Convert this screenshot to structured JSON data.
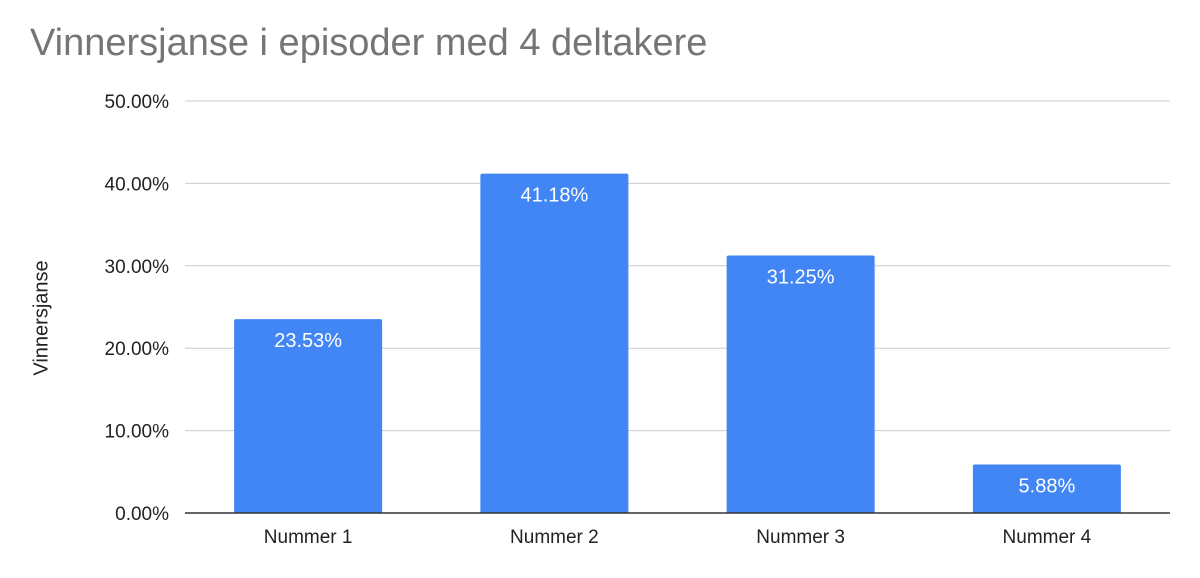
{
  "chart_data": {
    "type": "bar",
    "title": "Vinnersjanse i episoder med 4 deltakere",
    "xlabel": "",
    "ylabel": "Vinnersjanse",
    "categories": [
      "Nummer 1",
      "Nummer 2",
      "Nummer 3",
      "Nummer 4"
    ],
    "values": [
      23.53,
      41.18,
      31.25,
      5.88
    ],
    "value_labels": [
      "23.53%",
      "41.18%",
      "31.25%",
      "5.88%"
    ],
    "y_ticks": [
      0,
      10,
      20,
      30,
      40,
      50
    ],
    "y_tick_labels": [
      "0.00%",
      "10.00%",
      "20.00%",
      "30.00%",
      "40.00%",
      "50.00%"
    ],
    "ylim": [
      0,
      50
    ],
    "grid": true,
    "legend": "none",
    "bar_color": "#4285f4",
    "grid_color": "#cccccc",
    "axis_color": "#333333"
  }
}
